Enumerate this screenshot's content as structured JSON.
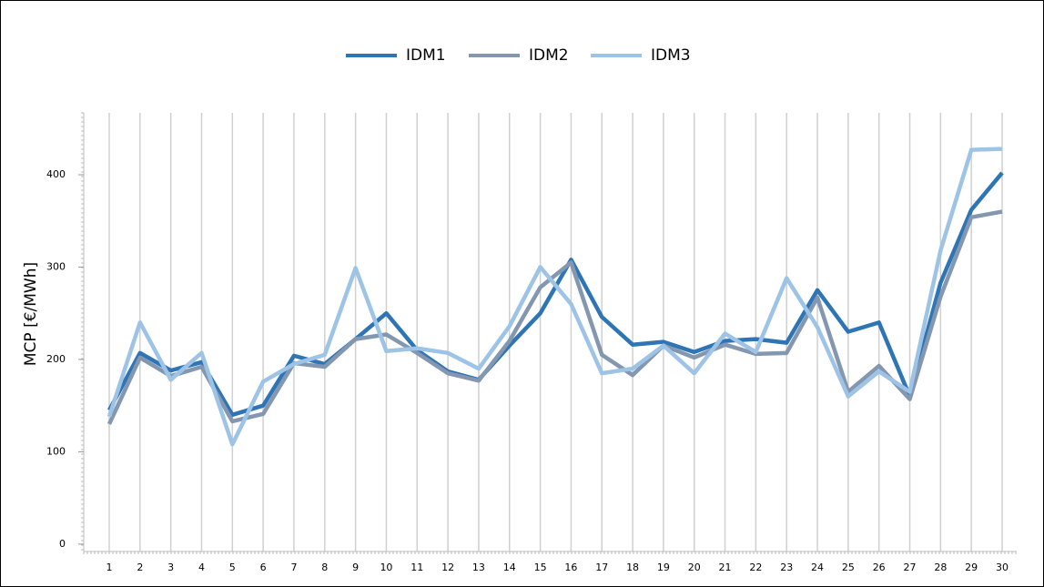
{
  "chart_data": {
    "type": "line",
    "y_label": "MCP [€/MWh]",
    "categories": [
      "1",
      "2",
      "3",
      "4",
      "5",
      "6",
      "7",
      "8",
      "9",
      "10",
      "11",
      "12",
      "13",
      "14",
      "15",
      "16",
      "17",
      "18",
      "19",
      "20",
      "21",
      "22",
      "23",
      "24",
      "25",
      "26",
      "27",
      "28",
      "29",
      "30"
    ],
    "series": [
      {
        "name": "IDM1",
        "color": "#2e75b6",
        "values": [
          145,
          207,
          188,
          197,
          140,
          150,
          204,
          195,
          222,
          250,
          210,
          187,
          178,
          215,
          250,
          308,
          246,
          216,
          219,
          208,
          220,
          222,
          218,
          275,
          230,
          240,
          160,
          283,
          362,
          402
        ]
      },
      {
        "name": "IDM2",
        "color": "#8497b0",
        "values": [
          130,
          202,
          182,
          192,
          133,
          141,
          196,
          192,
          222,
          227,
          207,
          185,
          177,
          220,
          278,
          305,
          205,
          183,
          215,
          202,
          216,
          206,
          207,
          267,
          165,
          193,
          157,
          268,
          354,
          360
        ]
      },
      {
        "name": "IDM3",
        "color": "#9dc3e6",
        "values": [
          138,
          240,
          178,
          207,
          108,
          176,
          195,
          205,
          299,
          209,
          212,
          207,
          190,
          236,
          300,
          260,
          185,
          190,
          215,
          185,
          228,
          208,
          288,
          235,
          160,
          187,
          165,
          318,
          427,
          428
        ]
      }
    ],
    "ylim": [
      -8,
      467
    ],
    "yticks": [
      0,
      100,
      200,
      300,
      400
    ],
    "grid": true
  }
}
